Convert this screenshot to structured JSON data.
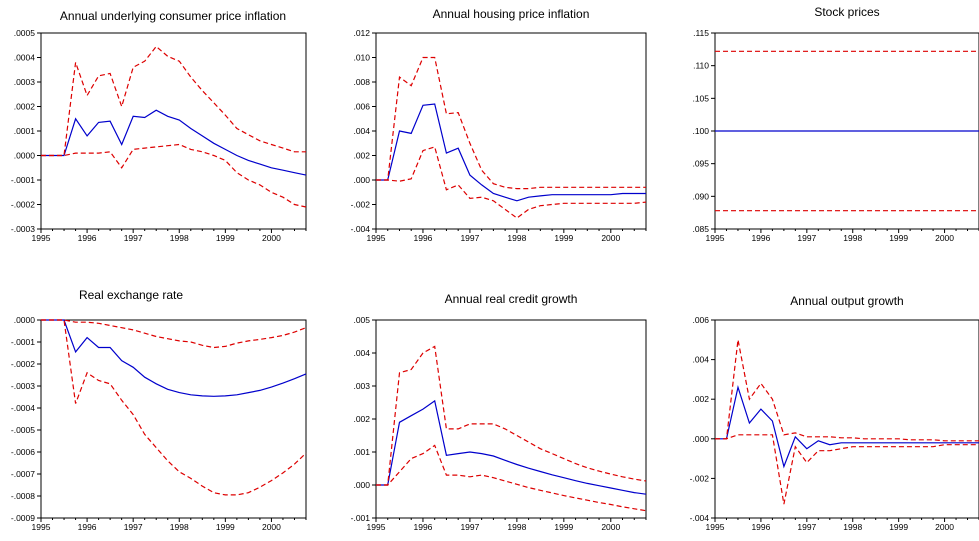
{
  "chart_data": [
    {
      "type": "line",
      "title": "Annual underlying consumer price inflation",
      "xlim": [
        1995,
        2000.75
      ],
      "ylim": [
        -0.0003,
        0.0005
      ],
      "xticks": [
        "1995",
        "1996",
        "1997",
        "1998",
        "1999",
        "2000"
      ],
      "yticks": [
        ".0005",
        ".0004",
        ".0003",
        ".0002",
        ".0001",
        ".0000",
        "-.0001",
        "-.0002",
        "-.0003"
      ],
      "x": [
        1995,
        1995.25,
        1995.5,
        1995.75,
        1996,
        1996.25,
        1996.5,
        1996.75,
        1997,
        1997.25,
        1997.5,
        1997.75,
        1998,
        1998.25,
        1998.5,
        1998.75,
        1999,
        1999.25,
        1999.5,
        1999.75,
        2000,
        2000.25,
        2000.5,
        2000.75
      ],
      "series": [
        {
          "role": "estimate",
          "color": "#0000cc",
          "dash": false,
          "values": [
            0,
            0,
            0,
            0.00015,
            8e-05,
            0.000135,
            0.00014,
            4.5e-05,
            0.00016,
            0.000155,
            0.000185,
            0.00016,
            0.000145,
            0.00011,
            8e-05,
            5e-05,
            2.5e-05,
            0,
            -2e-05,
            -3.5e-05,
            -5e-05,
            -6e-05,
            -7e-05,
            -8e-05
          ]
        },
        {
          "role": "upper",
          "color": "#dd0000",
          "dash": true,
          "values": [
            0,
            0,
            0,
            0.00038,
            0.000245,
            0.000325,
            0.000335,
            0.0002,
            0.00036,
            0.000385,
            0.000445,
            0.000405,
            0.000385,
            0.00032,
            0.000265,
            0.000215,
            0.000165,
            0.00011,
            8.5e-05,
            6e-05,
            4.5e-05,
            3e-05,
            1.5e-05,
            1.5e-05
          ]
        },
        {
          "role": "lower",
          "color": "#dd0000",
          "dash": true,
          "values": [
            0,
            0,
            0,
            1e-05,
            1e-05,
            1e-05,
            1.5e-05,
            -5e-05,
            2.5e-05,
            3e-05,
            3.5e-05,
            4e-05,
            4.5e-05,
            2.5e-05,
            1.5e-05,
            0,
            -2e-05,
            -7e-05,
            -0.0001,
            -0.00012,
            -0.00015,
            -0.00017,
            -0.0002,
            -0.00021
          ]
        }
      ]
    },
    {
      "type": "line",
      "title": "Annual housing price inflation",
      "xlim": [
        1995,
        2000.75
      ],
      "ylim": [
        -0.004,
        0.012
      ],
      "xticks": [
        "1995",
        "1996",
        "1997",
        "1998",
        "1999",
        "2000"
      ],
      "yticks": [
        ".012",
        ".010",
        ".008",
        ".006",
        ".004",
        ".002",
        ".000",
        "-.002",
        "-.004"
      ],
      "x": [
        1995,
        1995.25,
        1995.5,
        1995.75,
        1996,
        1996.25,
        1996.5,
        1996.75,
        1997,
        1997.25,
        1997.5,
        1997.75,
        1998,
        1998.25,
        1998.5,
        1998.75,
        1999,
        1999.25,
        1999.5,
        1999.75,
        2000,
        2000.25,
        2000.5,
        2000.75
      ],
      "series": [
        {
          "role": "estimate",
          "color": "#0000cc",
          "dash": false,
          "values": [
            0,
            0,
            0.004,
            0.0038,
            0.0061,
            0.0062,
            0.0022,
            0.0026,
            0.0004,
            -0.0004,
            -0.0011,
            -0.0014,
            -0.0017,
            -0.0014,
            -0.0013,
            -0.0012,
            -0.0012,
            -0.0012,
            -0.0012,
            -0.0012,
            -0.0012,
            -0.0011,
            -0.0011,
            -0.0011
          ]
        },
        {
          "role": "upper",
          "color": "#dd0000",
          "dash": true,
          "values": [
            0,
            0,
            0.0084,
            0.0077,
            0.01,
            0.01,
            0.0054,
            0.0055,
            0.003,
            0.0008,
            -0.0003,
            -0.0006,
            -0.0007,
            -0.0007,
            -0.0006,
            -0.0006,
            -0.0006,
            -0.0006,
            -0.0006,
            -0.0006,
            -0.0006,
            -0.0006,
            -0.0006,
            -0.0006
          ]
        },
        {
          "role": "lower",
          "color": "#dd0000",
          "dash": true,
          "values": [
            0,
            0,
            -0.0001,
            0.0001,
            0.0024,
            0.0027,
            -0.0008,
            -0.0004,
            -0.0015,
            -0.0014,
            -0.0017,
            -0.0024,
            -0.0031,
            -0.0024,
            -0.0021,
            -0.002,
            -0.0019,
            -0.0019,
            -0.0019,
            -0.0019,
            -0.0019,
            -0.0019,
            -0.0019,
            -0.0018
          ]
        }
      ]
    },
    {
      "type": "line",
      "title": "Stock prices",
      "xlim": [
        1995,
        2000.75
      ],
      "ylim": [
        0.085,
        0.115
      ],
      "xticks": [
        "1995",
        "1996",
        "1997",
        "1998",
        "1999",
        "2000"
      ],
      "yticks": [
        ".115",
        ".110",
        ".105",
        ".100",
        ".095",
        ".090",
        ".085"
      ],
      "x": [
        1995,
        2000.75
      ],
      "series": [
        {
          "role": "estimate",
          "color": "#0000cc",
          "dash": false,
          "values": [
            0.1,
            0.1
          ]
        },
        {
          "role": "upper",
          "color": "#dd0000",
          "dash": true,
          "values": [
            0.1122,
            0.1122
          ]
        },
        {
          "role": "lower",
          "color": "#dd0000",
          "dash": true,
          "values": [
            0.0878,
            0.0878
          ]
        }
      ]
    },
    {
      "type": "line",
      "title": "Real exchange rate",
      "xlim": [
        1995,
        2000.75
      ],
      "ylim": [
        -0.0009,
        0.0
      ],
      "xticks": [
        "1995",
        "1996",
        "1997",
        "1998",
        "1999",
        "2000"
      ],
      "yticks": [
        ".0000",
        "-.0001",
        "-.0002",
        "-.0003",
        "-.0004",
        "-.0005",
        "-.0006",
        "-.0007",
        "-.0008",
        "-.0009"
      ],
      "x": [
        1995,
        1995.25,
        1995.5,
        1995.75,
        1996,
        1996.25,
        1996.5,
        1996.75,
        1997,
        1997.25,
        1997.5,
        1997.75,
        1998,
        1998.25,
        1998.5,
        1998.75,
        1999,
        1999.25,
        1999.5,
        1999.75,
        2000,
        2000.25,
        2000.5,
        2000.75
      ],
      "series": [
        {
          "role": "estimate",
          "color": "#0000cc",
          "dash": false,
          "values": [
            0,
            0,
            0,
            -0.000145,
            -8e-05,
            -0.000125,
            -0.000125,
            -0.000185,
            -0.000215,
            -0.00026,
            -0.00029,
            -0.000315,
            -0.00033,
            -0.00034,
            -0.000345,
            -0.000347,
            -0.000345,
            -0.00034,
            -0.00033,
            -0.00032,
            -0.000305,
            -0.000287,
            -0.000267,
            -0.000245
          ]
        },
        {
          "role": "upper",
          "color": "#dd0000",
          "dash": true,
          "values": [
            0,
            0,
            0,
            -1e-05,
            -1e-05,
            -1.5e-05,
            -2.5e-05,
            -3.5e-05,
            -4.5e-05,
            -6e-05,
            -7.5e-05,
            -8.5e-05,
            -9.5e-05,
            -0.0001,
            -0.000115,
            -0.000125,
            -0.00012,
            -0.000105,
            -9.5e-05,
            -8.8e-05,
            -8e-05,
            -7e-05,
            -5.5e-05,
            -3.5e-05
          ]
        },
        {
          "role": "lower",
          "color": "#dd0000",
          "dash": true,
          "values": [
            0,
            0,
            0,
            -0.00038,
            -0.00024,
            -0.000275,
            -0.00029,
            -0.000365,
            -0.00043,
            -0.00052,
            -0.00058,
            -0.00064,
            -0.00069,
            -0.00072,
            -0.000755,
            -0.000785,
            -0.000795,
            -0.000795,
            -0.000785,
            -0.00076,
            -0.00073,
            -0.000695,
            -0.000655,
            -0.000605
          ]
        }
      ]
    },
    {
      "type": "line",
      "title": "Annual real credit growth",
      "xlim": [
        1995,
        2000.75
      ],
      "ylim": [
        -0.001,
        0.005
      ],
      "xticks": [
        "1995",
        "1996",
        "1997",
        "1998",
        "1999",
        "2000"
      ],
      "yticks": [
        ".005",
        ".004",
        ".003",
        ".002",
        ".001",
        ".000",
        "-.001"
      ],
      "x": [
        1995,
        1995.25,
        1995.5,
        1995.75,
        1996,
        1996.25,
        1996.5,
        1996.75,
        1997,
        1997.25,
        1997.5,
        1997.75,
        1998,
        1998.25,
        1998.5,
        1998.75,
        1999,
        1999.25,
        1999.5,
        1999.75,
        2000,
        2000.25,
        2000.5,
        2000.75
      ],
      "series": [
        {
          "role": "estimate",
          "color": "#0000cc",
          "dash": false,
          "values": [
            0,
            0,
            0.0019,
            0.0021,
            0.0023,
            0.00255,
            0.0009,
            0.00095,
            0.001,
            0.00095,
            0.00088,
            0.00075,
            0.00062,
            0.00051,
            0.00041,
            0.00031,
            0.00022,
            0.00013,
            5e-05,
            -2e-05,
            -9e-05,
            -0.00016,
            -0.00023,
            -0.00028
          ]
        },
        {
          "role": "upper",
          "color": "#dd0000",
          "dash": true,
          "values": [
            0,
            0,
            0.0034,
            0.0035,
            0.004,
            0.0042,
            0.0017,
            0.0017,
            0.00185,
            0.00185,
            0.00185,
            0.0017,
            0.0015,
            0.0013,
            0.0011,
            0.00095,
            0.0008,
            0.00065,
            0.00052,
            0.00042,
            0.00033,
            0.00025,
            0.00018,
            0.00012
          ]
        },
        {
          "role": "lower",
          "color": "#dd0000",
          "dash": true,
          "values": [
            0,
            0,
            0.0004,
            0.0008,
            0.00095,
            0.0012,
            0.0003,
            0.0003,
            0.00025,
            0.0003,
            0.00022,
            0.00012,
            2e-05,
            -8e-05,
            -0.00016,
            -0.00024,
            -0.00032,
            -0.00039,
            -0.00046,
            -0.00053,
            -0.00059,
            -0.00066,
            -0.00072,
            -0.00078
          ]
        }
      ]
    },
    {
      "type": "line",
      "title": "Annual output growth",
      "xlim": [
        1995,
        2000.75
      ],
      "ylim": [
        -0.004,
        0.006
      ],
      "xticks": [
        "1995",
        "1996",
        "1997",
        "1998",
        "1999",
        "2000"
      ],
      "yticks": [
        ".006",
        ".004",
        ".002",
        ".000",
        "-.002",
        "-.004"
      ],
      "x": [
        1995,
        1995.25,
        1995.5,
        1995.75,
        1996,
        1996.25,
        1996.5,
        1996.75,
        1997,
        1997.25,
        1997.5,
        1997.75,
        1998,
        1998.25,
        1998.5,
        1998.75,
        1999,
        1999.25,
        1999.5,
        1999.75,
        2000,
        2000.25,
        2000.5,
        2000.75
      ],
      "series": [
        {
          "role": "estimate",
          "color": "#0000cc",
          "dash": false,
          "values": [
            0,
            0,
            0.0026,
            0.0008,
            0.0015,
            0.0009,
            -0.0014,
            0.0001,
            -0.0005,
            -0.0001,
            -0.0003,
            -0.0002,
            -0.0002,
            -0.0002,
            -0.0002,
            -0.0002,
            -0.0002,
            -0.0002,
            -0.0002,
            -0.0002,
            -0.0002,
            -0.0002,
            -0.0002,
            -0.0002
          ]
        },
        {
          "role": "upper",
          "color": "#dd0000",
          "dash": true,
          "values": [
            0,
            0,
            0.005,
            0.002,
            0.0028,
            0.002,
            0.0002,
            0.0003,
            0.0001,
            0.0001,
            0.0001,
            5e-05,
            5e-05,
            0,
            0,
            0,
            0,
            -5e-05,
            -5e-05,
            -5e-05,
            -0.0001,
            -0.0001,
            -0.0001,
            -0.0001
          ]
        },
        {
          "role": "lower",
          "color": "#dd0000",
          "dash": true,
          "values": [
            0,
            0,
            0.0002,
            0.0002,
            0.0002,
            0.0002,
            -0.0033,
            -0.0004,
            -0.0012,
            -0.0006,
            -0.0006,
            -0.0005,
            -0.0004,
            -0.0004,
            -0.0004,
            -0.0004,
            -0.0004,
            -0.0004,
            -0.0004,
            -0.0004,
            -0.0003,
            -0.0003,
            -0.0003,
            -0.0003
          ]
        }
      ]
    }
  ]
}
